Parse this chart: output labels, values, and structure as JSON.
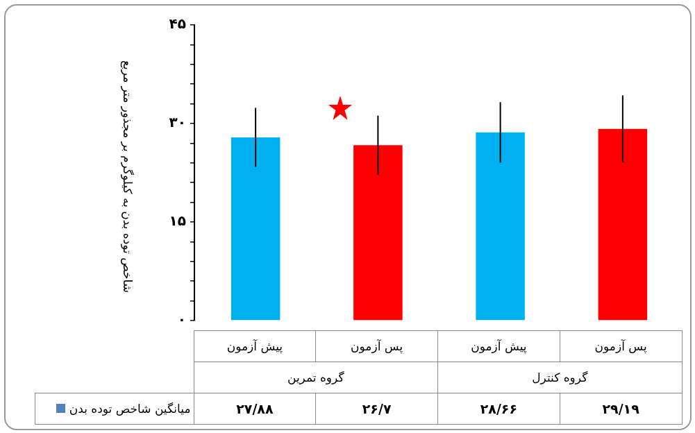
{
  "chart_data": {
    "type": "bar",
    "ylabel": "شاخص توده بدن به کیلوگرم بر مجذور متر مربع",
    "categories": [
      "پیش آزمون",
      "پس آزمون",
      "پیش آزمون",
      "پس آزمون"
    ],
    "series": [
      {
        "name": "میانگین شاخص توده بدن",
        "color": "#4f81bd",
        "colors": [
          "#00b0f0",
          "#ff0000",
          "#00b0f0",
          "#ff0000"
        ],
        "values": [
          27.88,
          26.7,
          28.66,
          29.19
        ],
        "errors": [
          4.5,
          4.5,
          4.6,
          5.1
        ],
        "value_labels": [
          "۲۷/۸۸",
          "۲۶/۷",
          "۲۸/۶۶",
          "۲۹/۱۹"
        ]
      }
    ],
    "annotations": [
      "گروه تمرین",
      "گروه کنترل"
    ],
    "ylim": [
      0,
      45
    ],
    "yticks": [
      {
        "value": 0,
        "label": "۰"
      },
      {
        "value": 3,
        "label": null
      },
      {
        "value": 6,
        "label": null
      },
      {
        "value": 9,
        "label": null
      },
      {
        "value": 12,
        "label": null
      },
      {
        "value": 15,
        "label": "۱۵"
      },
      {
        "value": 18,
        "label": null
      },
      {
        "value": 21,
        "label": null
      },
      {
        "value": 24,
        "label": null
      },
      {
        "value": 27,
        "label": null
      },
      {
        "value": 30,
        "label": "۳۰"
      },
      {
        "value": 33,
        "label": null
      },
      {
        "value": 36,
        "label": null
      },
      {
        "value": 39,
        "label": null
      },
      {
        "value": 42,
        "label": null
      },
      {
        "value": 45,
        "label": "۴۵"
      }
    ],
    "grid": false,
    "legend": "bottom left"
  }
}
